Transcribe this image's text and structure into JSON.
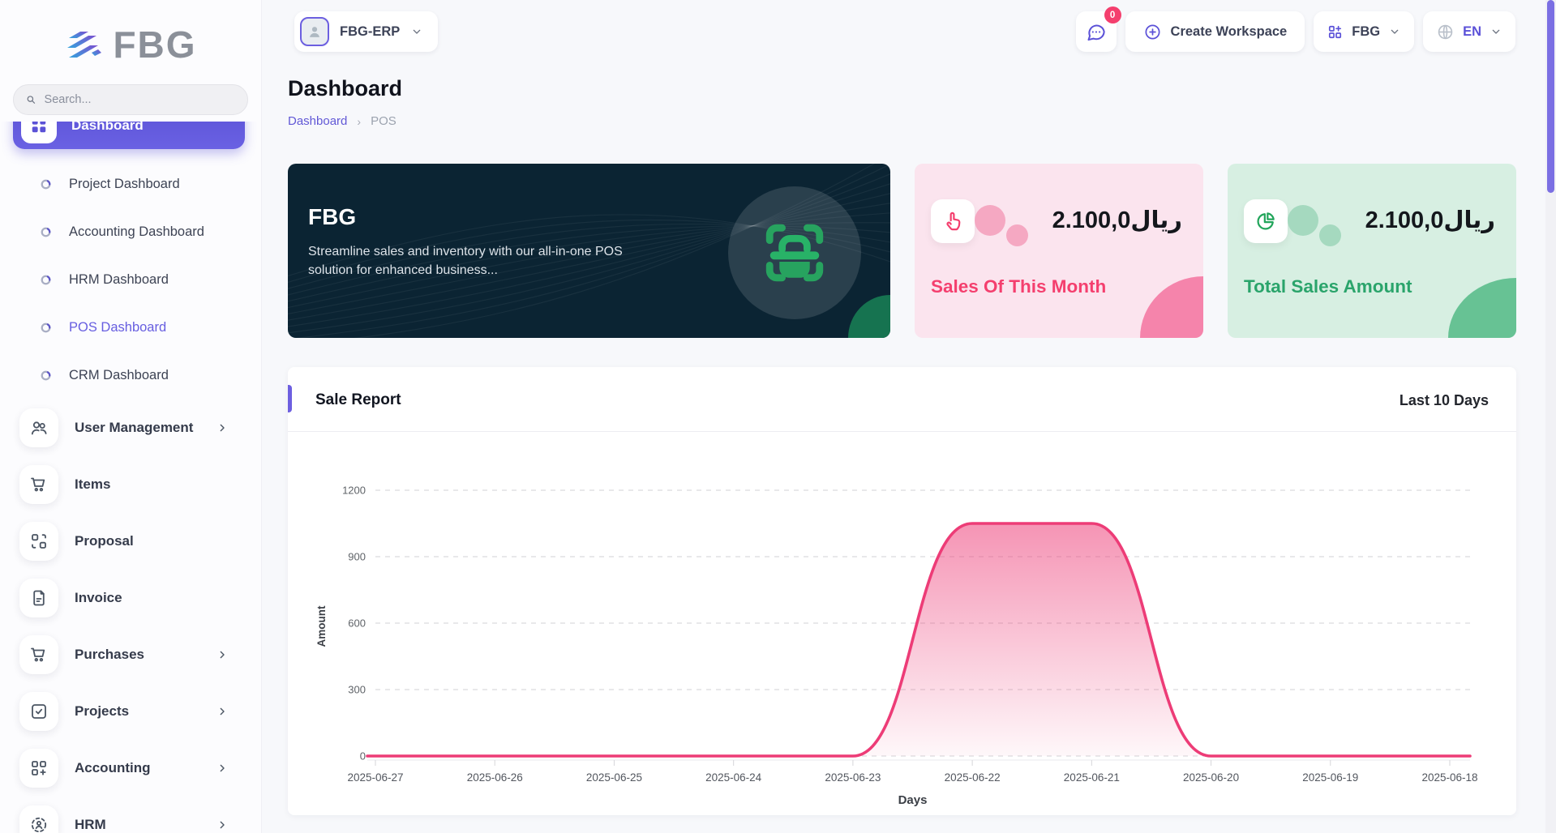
{
  "app": {
    "logo_text": "FBG"
  },
  "colors": {
    "accent": "#6158d6",
    "pink": "#f43f6e",
    "green": "#26a269",
    "chart_line": "#ed3c77",
    "dark_card_bg": "#0b2433"
  },
  "sidebar": {
    "search_placeholder": "Search...",
    "items": [
      {
        "id": "dashboard",
        "label": "Dashboard",
        "type": "main",
        "icon": "dashboard",
        "active": true
      },
      {
        "id": "project-dashboard",
        "label": "Project Dashboard",
        "type": "sub"
      },
      {
        "id": "accounting-dashboard",
        "label": "Accounting Dashboard",
        "type": "sub"
      },
      {
        "id": "hrm-dashboard",
        "label": "HRM Dashboard",
        "type": "sub"
      },
      {
        "id": "pos-dashboard",
        "label": "POS Dashboard",
        "type": "sub",
        "active": true
      },
      {
        "id": "crm-dashboard",
        "label": "CRM Dashboard",
        "type": "sub"
      },
      {
        "id": "user-management",
        "label": "User Management",
        "type": "group",
        "icon": "users",
        "chevron": true
      },
      {
        "id": "items",
        "label": "Items",
        "type": "group",
        "icon": "cart",
        "chevron": false
      },
      {
        "id": "proposal",
        "label": "Proposal",
        "type": "group",
        "icon": "proposal",
        "chevron": false
      },
      {
        "id": "invoice",
        "label": "Invoice",
        "type": "group",
        "icon": "invoice",
        "chevron": false
      },
      {
        "id": "purchases",
        "label": "Purchases",
        "type": "group",
        "icon": "cart",
        "chevron": true
      },
      {
        "id": "projects",
        "label": "Projects",
        "type": "group",
        "icon": "check-square",
        "chevron": true
      },
      {
        "id": "accounting",
        "label": "Accounting",
        "type": "group",
        "icon": "grid-plus",
        "chevron": true
      },
      {
        "id": "hrm",
        "label": "HRM",
        "type": "group",
        "icon": "scan-user",
        "chevron": true
      }
    ]
  },
  "header": {
    "workspace_label": "FBG-ERP",
    "messages_badge": "0",
    "create_workspace_label": "Create Workspace",
    "app_switcher_label": "FBG",
    "language_label": "EN"
  },
  "page": {
    "title": "Dashboard",
    "breadcrumb": {
      "parent": "Dashboard",
      "current": "POS"
    }
  },
  "cards": {
    "promo": {
      "title": "FBG",
      "description": "Streamline sales and inventory with our all-in-one POS solution for enhanced business..."
    },
    "sales_month": {
      "value": "2.100,0ريال",
      "label": "Sales Of This Month"
    },
    "total_sales": {
      "value": "2.100,0ريال",
      "label": "Total Sales Amount"
    }
  },
  "chart_data": {
    "type": "area",
    "title": "Sale Report",
    "subtitle": "Last 10 Days",
    "categories": [
      "2025-06-27",
      "2025-06-26",
      "2025-06-25",
      "2025-06-24",
      "2025-06-23",
      "2025-06-22",
      "2025-06-21",
      "2025-06-20",
      "2025-06-19",
      "2025-06-18"
    ],
    "values": [
      0,
      0,
      0,
      0,
      0,
      1050,
      1050,
      0,
      0,
      0
    ],
    "xlabel": "Days",
    "ylabel": "Amount",
    "yticks": [
      0,
      300,
      600,
      900,
      1200
    ],
    "ylim": [
      0,
      1200
    ],
    "grid": "dashed-horizontal",
    "legend": "none",
    "line_color": "#ed3c77"
  }
}
